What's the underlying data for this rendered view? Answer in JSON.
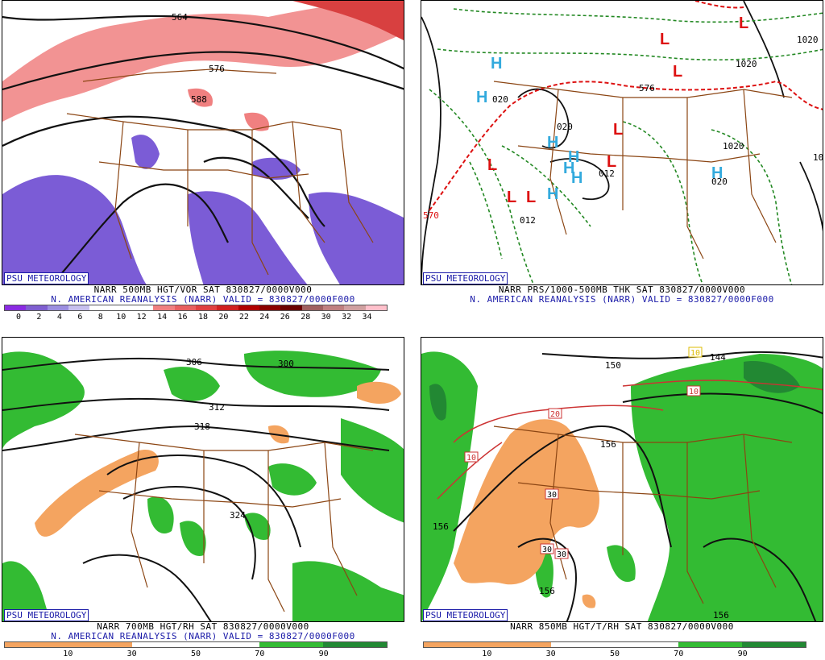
{
  "panels": {
    "tl": {
      "badge": "PSU METEOROLOGY",
      "caption1": "NARR 500MB HGT/VOR SAT 830827/0000V000",
      "caption2": "N. AMERICAN REANALYSIS (NARR) VALID = 830827/0000F000",
      "colorbar_colors": [
        "#8a2be2",
        "#7f5fd0",
        "#9b8ee0",
        "#c7c0ee",
        "#ffffff",
        "#ffffff",
        "#ffffff",
        "#f08080",
        "#e86060",
        "#e04040",
        "#d02020",
        "#b00000",
        "#8b0000",
        "#6b0000",
        "#a06060",
        "#c08080",
        "#d0a0a0",
        "#ffc0cb"
      ],
      "ticks": [
        "0",
        "2",
        "4",
        "6",
        "8",
        "10",
        "12",
        "14",
        "16",
        "18",
        "20",
        "22",
        "24",
        "26",
        "28",
        "30",
        "32",
        "34"
      ],
      "contour_labels": [
        "564",
        "576",
        "588"
      ]
    },
    "tr": {
      "badge": "PSU METEOROLOGY",
      "caption1": "NARR PRS/1000-500MB THK SAT 830827/0000V000",
      "caption2": "N. AMERICAN REANALYSIS (NARR) VALID = 830827/0000F000",
      "contour_labels": [
        "570",
        "576",
        "020",
        "012",
        "012",
        "020",
        "020",
        "1020",
        "1020",
        "1020",
        "10"
      ],
      "symbols": {
        "high": "H",
        "low": "L"
      },
      "colors": {
        "high": "#33aadd",
        "low": "#dd1111",
        "thickness_dash": "#dd1111",
        "isobar_dash": "#228822"
      }
    },
    "bl": {
      "badge": "PSU METEOROLOGY",
      "caption1": "NARR 700MB HGT/RH SAT 830827/0000V000",
      "caption2": "N. AMERICAN REANALYSIS (NARR) VALID = 830827/0000F000",
      "colorbar": [
        {
          "color": "#f4a460",
          "label": "10"
        },
        {
          "color": "#f4a460",
          "label": "30"
        },
        {
          "color": "#ffffff",
          "label": "50"
        },
        {
          "color": "#ffffff",
          "label": "70"
        },
        {
          "color": "#33bb33",
          "label": "90"
        }
      ],
      "ticks": [
        "10",
        "30",
        "50",
        "70",
        "90"
      ],
      "contour_labels": [
        "306",
        "300",
        "312",
        "318",
        "324"
      ]
    },
    "br": {
      "badge": "PSU METEOROLOGY",
      "caption1": "NARR 850MB HGT/T/RH SAT 830827/0000V000",
      "ticks": [
        "10",
        "30",
        "50",
        "70",
        "90"
      ],
      "contour_labels": [
        "150",
        "144",
        "156",
        "156",
        "156",
        "156"
      ],
      "temp_labels": [
        "20",
        "10",
        "30",
        "30",
        "30",
        "10",
        "10"
      ]
    }
  },
  "colors": {
    "badge": "#1a1aa8",
    "border_brown": "#8b4513",
    "dry": "#f4a460",
    "moist": "#33bb33",
    "moist_dark": "#228833"
  }
}
